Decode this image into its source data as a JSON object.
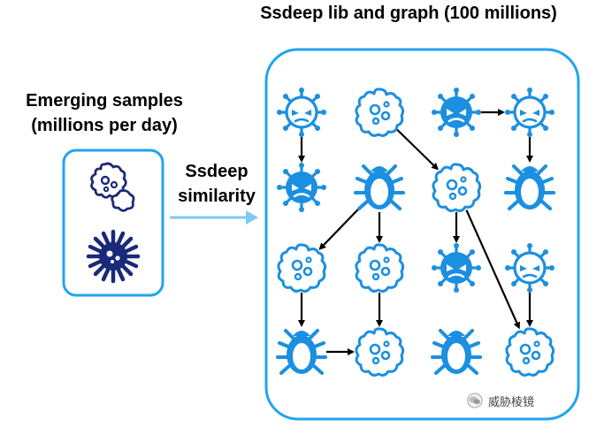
{
  "title": "Ssdeep lib and graph (100 millions)",
  "input": {
    "line1": "Emerging samples",
    "line2": "(millions per day)"
  },
  "connector": {
    "line1": "Ssdeep",
    "line2": "similarity"
  },
  "watermark": "威胁棱镜",
  "colors": {
    "graph_blue": "#1b8fe0",
    "sample_navy": "#1a2a7a",
    "box_border": "#22a4f0",
    "arrow": "#000000"
  },
  "graph_nodes": [
    {
      "id": "n1",
      "kind": "virus-face-outline"
    },
    {
      "id": "n2",
      "kind": "blob-dots-outline"
    },
    {
      "id": "n3",
      "kind": "virus-face-filled"
    },
    {
      "id": "n4",
      "kind": "virus-face-outline"
    },
    {
      "id": "n5",
      "kind": "virus-face-filled"
    },
    {
      "id": "n6",
      "kind": "bug-outline"
    },
    {
      "id": "n7",
      "kind": "blob-dots-outline"
    },
    {
      "id": "n8",
      "kind": "bug-outline"
    },
    {
      "id": "n9",
      "kind": "blob-dots-outline"
    },
    {
      "id": "n10",
      "kind": "blob-dots-outline"
    },
    {
      "id": "n11",
      "kind": "virus-face-filled"
    },
    {
      "id": "n12",
      "kind": "virus-face-outline"
    },
    {
      "id": "n13",
      "kind": "bug-outline"
    },
    {
      "id": "n14",
      "kind": "blob-dots-outline"
    },
    {
      "id": "n15",
      "kind": "bug-outline"
    },
    {
      "id": "n16",
      "kind": "blob-dots-outline"
    }
  ],
  "graph_edges": [
    {
      "from": "n1",
      "to": "n5"
    },
    {
      "from": "n3",
      "to": "n4"
    },
    {
      "from": "n4",
      "to": "n8"
    },
    {
      "from": "n2",
      "to": "n7"
    },
    {
      "from": "n6",
      "to": "n9"
    },
    {
      "from": "n6",
      "to": "n10"
    },
    {
      "from": "n7",
      "to": "n11"
    },
    {
      "from": "n7",
      "to": "n16"
    },
    {
      "from": "n9",
      "to": "n13"
    },
    {
      "from": "n10",
      "to": "n14"
    },
    {
      "from": "n13",
      "to": "n14"
    },
    {
      "from": "n12",
      "to": "n16"
    }
  ]
}
